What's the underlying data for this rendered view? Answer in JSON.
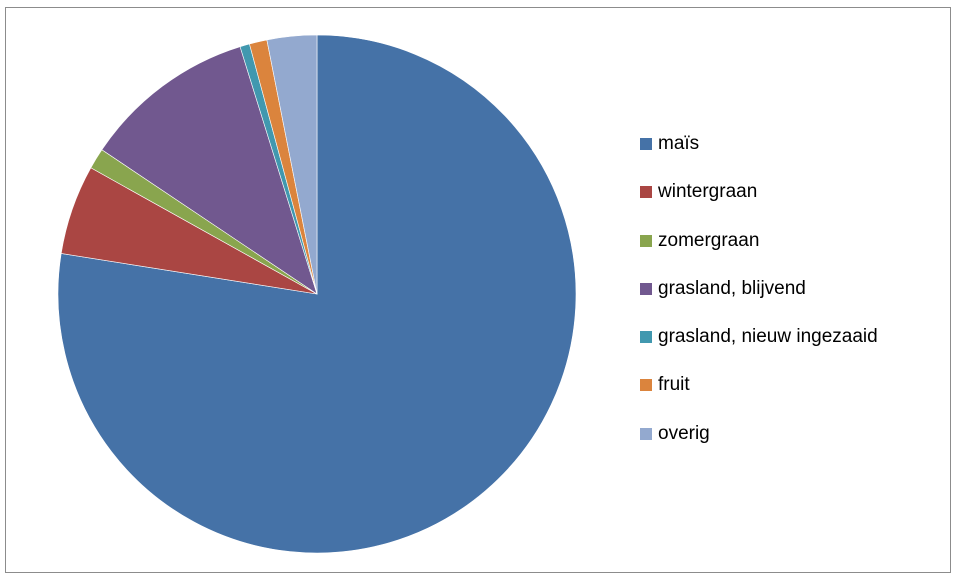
{
  "chart_data": {
    "type": "pie",
    "start_angle_deg": 0,
    "direction": "clockwise",
    "slices": [
      {
        "label": "maïs",
        "value": 77.5,
        "color": "#4572A7"
      },
      {
        "label": "wintergraan",
        "value": 5.6,
        "color": "#AA4643"
      },
      {
        "label": "zomergraan",
        "value": 1.3,
        "color": "#89A54E"
      },
      {
        "label": "grasland, blijvend",
        "value": 10.8,
        "color": "#71588F"
      },
      {
        "label": "grasland, nieuw ingezaaid",
        "value": 0.6,
        "color": "#4198AF"
      },
      {
        "label": "fruit",
        "value": 1.1,
        "color": "#DB843D"
      },
      {
        "label": "overig",
        "value": 3.1,
        "color": "#93A9CF"
      }
    ],
    "legend_position": "right",
    "title": "",
    "xlabel": "",
    "ylabel": ""
  }
}
